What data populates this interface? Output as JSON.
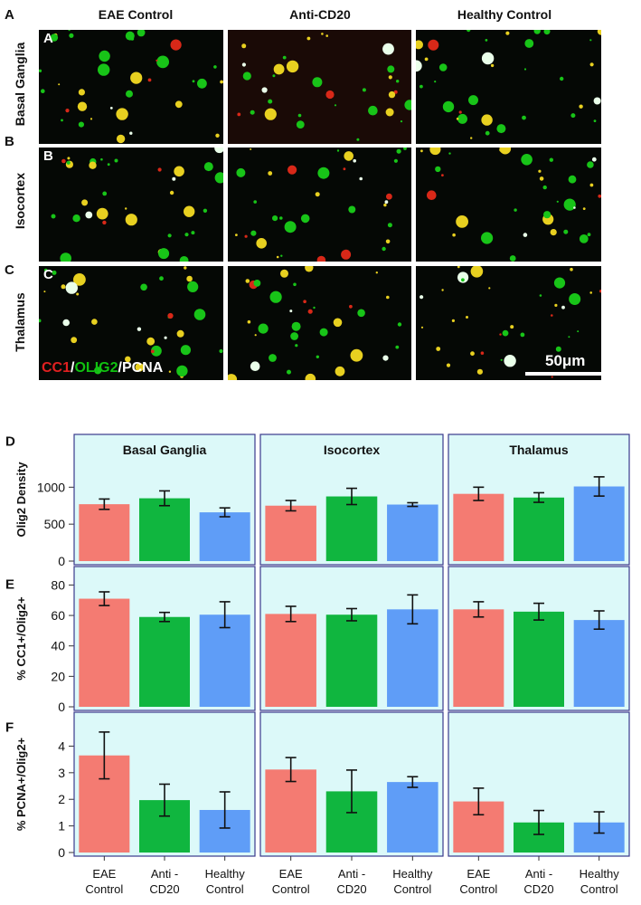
{
  "micrograph": {
    "column_titles": [
      "EAE Control",
      "Anti-CD20",
      "Healthy Control"
    ],
    "rows": [
      {
        "letter": "A",
        "label": "Basal Ganglia"
      },
      {
        "letter": "B",
        "label": "Isocortex"
      },
      {
        "letter": "C",
        "label": "Thalamus"
      }
    ],
    "stain_legend": {
      "cc1": "CC1",
      "sep1": "/",
      "olig2": "OLIG2",
      "sep2": "/",
      "pcna": "PCNA"
    },
    "scale_bar": "50μm",
    "colors": {
      "cc1": "#e02020",
      "olig2": "#10c010",
      "pcna": "#ffffff"
    }
  },
  "chart_data": [
    {
      "type": "bar",
      "panel": "D",
      "ylabel": "Olig2 Density",
      "ylim": [
        0,
        1200
      ],
      "yticks": [
        0,
        500,
        1000
      ],
      "groups": [
        "Basal Ganglia",
        "Isocortex",
        "Thalamus"
      ],
      "categories": [
        "EAE Control",
        "Anti-CD20",
        "Healthy Control"
      ],
      "values": [
        [
          770,
          850,
          660
        ],
        [
          750,
          875,
          765
        ],
        [
          910,
          860,
          1010
        ]
      ],
      "errors": [
        [
          70,
          100,
          60
        ],
        [
          70,
          110,
          25
        ],
        [
          90,
          65,
          130
        ]
      ]
    },
    {
      "type": "bar",
      "panel": "E",
      "ylabel": "% CC1+/Olig2+",
      "ylim": [
        0,
        85
      ],
      "yticks": [
        0,
        20,
        40,
        60,
        80
      ],
      "groups": [
        "Basal Ganglia",
        "Isocortex",
        "Thalamus"
      ],
      "categories": [
        "EAE Control",
        "Anti-CD20",
        "Healthy Control"
      ],
      "values": [
        [
          71,
          59,
          60.5
        ],
        [
          61,
          60.5,
          64
        ],
        [
          64,
          62.5,
          57
        ]
      ],
      "errors": [
        [
          4.5,
          3,
          8.5
        ],
        [
          5,
          4,
          9.5
        ],
        [
          5,
          5.5,
          6
        ]
      ]
    },
    {
      "type": "bar",
      "panel": "F",
      "ylabel": "% PCNA+/Olig2+",
      "ylim": [
        0,
        4.9
      ],
      "yticks": [
        0,
        1,
        2,
        3,
        4
      ],
      "groups": [
        "Basal Ganglia",
        "Isocortex",
        "Thalamus"
      ],
      "categories": [
        "EAE Control",
        "Anti - CD20",
        "Healthy Control"
      ],
      "xlabels": [
        [
          "EAE",
          "Control"
        ],
        [
          "Anti -",
          "CD20"
        ],
        [
          "Healthy",
          "Control"
        ]
      ],
      "values": [
        [
          3.65,
          1.97,
          1.6
        ],
        [
          3.12,
          2.3,
          2.65
        ],
        [
          1.92,
          1.13,
          1.13
        ]
      ],
      "errors": [
        [
          0.88,
          0.6,
          0.68
        ],
        [
          0.45,
          0.8,
          0.2
        ],
        [
          0.5,
          0.45,
          0.4
        ]
      ]
    }
  ],
  "bar_colors": [
    "#f47b72",
    "#10b63f",
    "#5f9df7"
  ],
  "facet_bg": "#dcf9f9",
  "facet_border": "#3a3a8c"
}
